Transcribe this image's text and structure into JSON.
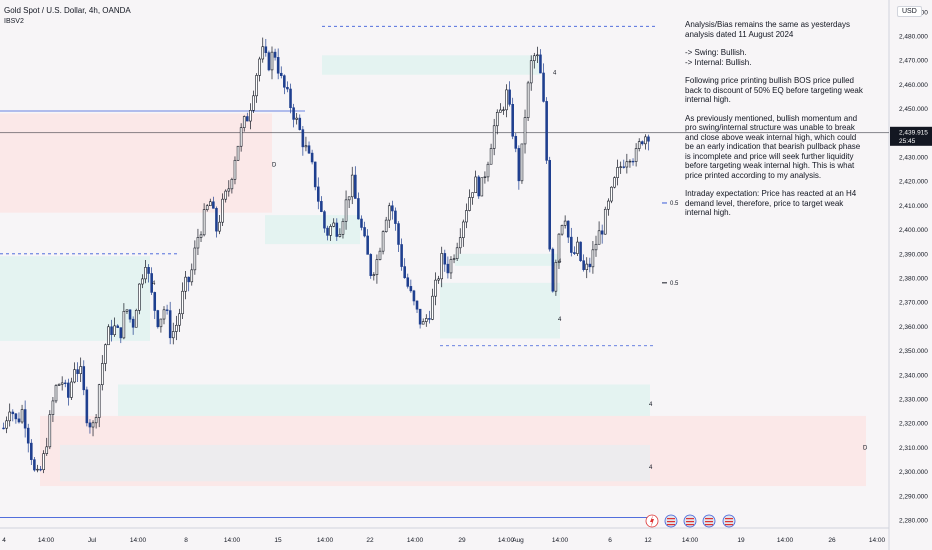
{
  "header": {
    "symbol": "Gold Spot / U.S. Dollar, 4h, OANDA",
    "indicator": "IBSV2"
  },
  "currency_button": "USD",
  "annotation": {
    "paragraphs": [
      "Analysis/Bias remains the same as yesterdays analysis dated 11 August 2024",
      "-> Swing:  Bullish.\n-> Internal:  Bullish.",
      "Following price printing bullish BOS price pulled back to discount of 50% EQ before targeting weak internal high.",
      "As previously mentioned, bullish momentum and pro swing/internal structure was unable to break and close above weak internal high, which could be an early indication that bearish pullback phase is incomplete and price will seek further liquidity before targeting weak internal high.  This is what price printed according to my analysis.",
      "Intraday expectation: Price has reacted at an H4 demand level, therefore, price to target weak internal high."
    ]
  },
  "price_tag": {
    "price": "2,439.915",
    "countdown": "25:45",
    "color": "#131722"
  },
  "colors": {
    "up": "#131722",
    "down": "#1f3f8f",
    "demand": "#e3f2f0",
    "supply": "#fbe7e7",
    "neutral": "#ececee"
  },
  "chart_data": {
    "type": "candlestick",
    "ylim": [
      2276,
      2495
    ],
    "y_ticks": [
      2280,
      2290,
      2300,
      2310,
      2320,
      2330,
      2340,
      2350,
      2360,
      2370,
      2380,
      2390,
      2400,
      2410,
      2420,
      2430,
      2440,
      2450,
      2460,
      2470,
      2480,
      2490
    ],
    "y_tick_labels": [
      "2,280.000",
      "2,290.000",
      "2,300.000",
      "2,310.000",
      "2,320.000",
      "2,330.000",
      "2,340.000",
      "2,350.000",
      "2,360.000",
      "2,370.000",
      "2,380.000",
      "2,390.000",
      "2,400.000",
      "2,410.000",
      "2,420.000",
      "2,430.000",
      "2,440.000",
      "2,450.000",
      "2,460.000",
      "2,470.000",
      "2,480.000",
      "2,490.000"
    ],
    "x_labels": [
      "4",
      "14:00",
      "Jul",
      "14:00",
      "8",
      "14:00",
      "15",
      "14:00",
      "22",
      "14:00",
      "29",
      "14:00",
      "Aug",
      "14:00",
      "6",
      "12",
      "14:00",
      "19",
      "14:00",
      "26",
      "14:00"
    ],
    "close_path": [
      2318,
      2328,
      2320,
      2326,
      2312,
      2296,
      2302,
      2318,
      2334,
      2338,
      2330,
      2344,
      2340,
      2322,
      2318,
      2340,
      2356,
      2360,
      2356,
      2368,
      2360,
      2376,
      2388,
      2372,
      2362,
      2368,
      2356,
      2362,
      2376,
      2380,
      2396,
      2404,
      2412,
      2400,
      2410,
      2418,
      2432,
      2442,
      2448,
      2462,
      2474,
      2468,
      2474,
      2462,
      2455,
      2448,
      2440,
      2432,
      2424,
      2410,
      2398,
      2402,
      2400,
      2410,
      2420,
      2406,
      2394,
      2382,
      2388,
      2404,
      2412,
      2398,
      2382,
      2374,
      2366,
      2360,
      2366,
      2376,
      2388,
      2384,
      2392,
      2402,
      2412,
      2420,
      2416,
      2428,
      2442,
      2448,
      2456,
      2440,
      2420,
      2452,
      2472,
      2470,
      2444,
      2372,
      2398,
      2408,
      2388,
      2392,
      2382,
      2386,
      2396,
      2402,
      2412,
      2422,
      2428,
      2432,
      2430,
      2438,
      2440
    ],
    "zones": [
      {
        "kind": "supply",
        "y": [
          2407,
          2448
        ],
        "x": [
          0,
          272
        ]
      },
      {
        "kind": "demand",
        "y": [
          2354,
          2389
        ],
        "x": [
          0,
          150
        ]
      },
      {
        "kind": "demand",
        "y": [
          2394,
          2406
        ],
        "x": [
          265,
          360
        ]
      },
      {
        "kind": "demand",
        "y": [
          2464,
          2472
        ],
        "x": [
          322,
          540
        ]
      },
      {
        "kind": "demand",
        "y": [
          2373,
          2378
        ],
        "x": [
          440,
          560
        ]
      },
      {
        "kind": "demand",
        "y": [
          2355,
          2373
        ],
        "x": [
          440,
          560
        ]
      },
      {
        "kind": "demand",
        "y": [
          2385,
          2390
        ],
        "x": [
          455,
          560
        ]
      },
      {
        "kind": "demand",
        "y": [
          2323,
          2336
        ],
        "x": [
          118,
          650
        ]
      },
      {
        "kind": "supply",
        "y": [
          2294,
          2323
        ],
        "x": [
          40,
          866
        ]
      },
      {
        "kind": "neutral",
        "y": [
          2296,
          2311
        ],
        "x": [
          60,
          650
        ]
      }
    ],
    "levels": [
      {
        "y": 2449,
        "x": [
          0,
          305
        ],
        "dashed": false
      },
      {
        "y": 2390,
        "x": [
          0,
          180
        ],
        "dashed": true
      },
      {
        "y": 2484,
        "x": [
          322,
          655
        ],
        "dashed": true
      },
      {
        "y": 2352,
        "x": [
          440,
          655
        ],
        "dashed": true
      },
      {
        "y": 2281,
        "x": [
          0,
          648
        ],
        "dashed": false
      }
    ],
    "labels": [
      {
        "text": "D",
        "x": 272,
        "y": 2427
      },
      {
        "text": "4",
        "x": 152,
        "y": 2378
      },
      {
        "text": "4",
        "x": 553,
        "y": 2465
      },
      {
        "text": "4",
        "x": 558,
        "y": 2387
      },
      {
        "text": "4",
        "x": 558,
        "y": 2363
      },
      {
        "text": "4",
        "x": 649,
        "y": 2328
      },
      {
        "text": "4",
        "x": 649,
        "y": 2302
      },
      {
        "text": "D",
        "x": 863,
        "y": 2310
      },
      {
        "text": "0.5",
        "x": 670,
        "y": 2411
      },
      {
        "text": "0.5",
        "x": 670,
        "y": 2378
      }
    ]
  }
}
